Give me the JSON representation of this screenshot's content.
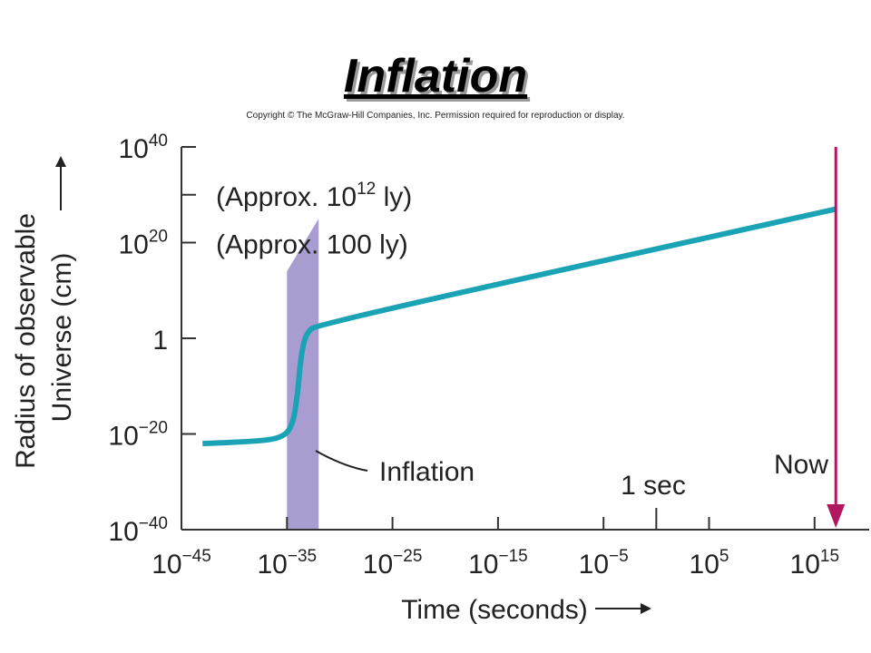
{
  "title": "Inflation",
  "copyright": "Copyright © The McGraw-Hill Companies, Inc. Permission required for reproduction or display.",
  "colors": {
    "curve": "#1aa3b5",
    "inflation_band": "#a89cd0",
    "now_arrow": "#b0175e",
    "axis": "#333333"
  },
  "chart_data": {
    "type": "line",
    "x_scale": "log10",
    "y_scale": "log10",
    "xlabel": "Time (seconds)",
    "ylabel_line1": "Radius of observable",
    "ylabel_line2": "Universe (cm)",
    "xlim_exp": [
      -45,
      17
    ],
    "ylim_exp": [
      -40,
      40
    ],
    "x_ticks": [
      {
        "base": "10",
        "exp": "−45",
        "value_exp": -45
      },
      {
        "base": "10",
        "exp": "−35",
        "value_exp": -35
      },
      {
        "base": "10",
        "exp": "−25",
        "value_exp": -25
      },
      {
        "base": "10",
        "exp": "−15",
        "value_exp": -15
      },
      {
        "base": "10",
        "exp": "−5",
        "value_exp": -5
      },
      {
        "base": "10",
        "exp": "5",
        "value_exp": 5
      },
      {
        "base": "10",
        "exp": "15",
        "value_exp": 15
      }
    ],
    "y_ticks": [
      {
        "base": "10",
        "exp": "40",
        "value_exp": 40
      },
      {
        "base": "10",
        "exp": "20",
        "value_exp": 20
      },
      {
        "base": "1",
        "exp": "",
        "value_exp": 0
      },
      {
        "base": "10",
        "exp": "−20",
        "value_exp": -20
      },
      {
        "base": "10",
        "exp": "−40",
        "value_exp": -40
      }
    ],
    "annotations": {
      "approx_1e12": {
        "prefix": "(Approx. 10",
        "sup": "12",
        "suffix": " ly)",
        "value_exp": 30
      },
      "approx_100": {
        "text": "(Approx. 100 ly)",
        "value_exp": 20
      },
      "inflation": {
        "text": "Inflation"
      },
      "one_sec": {
        "text": "1 sec",
        "value_exp": 0
      },
      "now": {
        "text": "Now",
        "value_exp": 17.1
      }
    },
    "inflation_band": {
      "x_start_exp": -35,
      "x_end_exp": -32,
      "y_bottom_exp": -40,
      "y_top_left_exp": 14,
      "y_top_right_exp": 25
    },
    "series": [
      {
        "points": [
          {
            "x_exp": -43,
            "y_exp": -22
          },
          {
            "x_exp": -38,
            "y_exp": -21.6
          },
          {
            "x_exp": -35.5,
            "y_exp": -20.8
          },
          {
            "x_exp": -34.5,
            "y_exp": -18.5
          },
          {
            "x_exp": -34.0,
            "y_exp": -12
          },
          {
            "x_exp": -33.7,
            "y_exp": -4
          },
          {
            "x_exp": -33.2,
            "y_exp": 1.2
          },
          {
            "x_exp": -32,
            "y_exp": 3
          },
          {
            "x_exp": 17,
            "y_exp": 27
          }
        ]
      }
    ]
  }
}
